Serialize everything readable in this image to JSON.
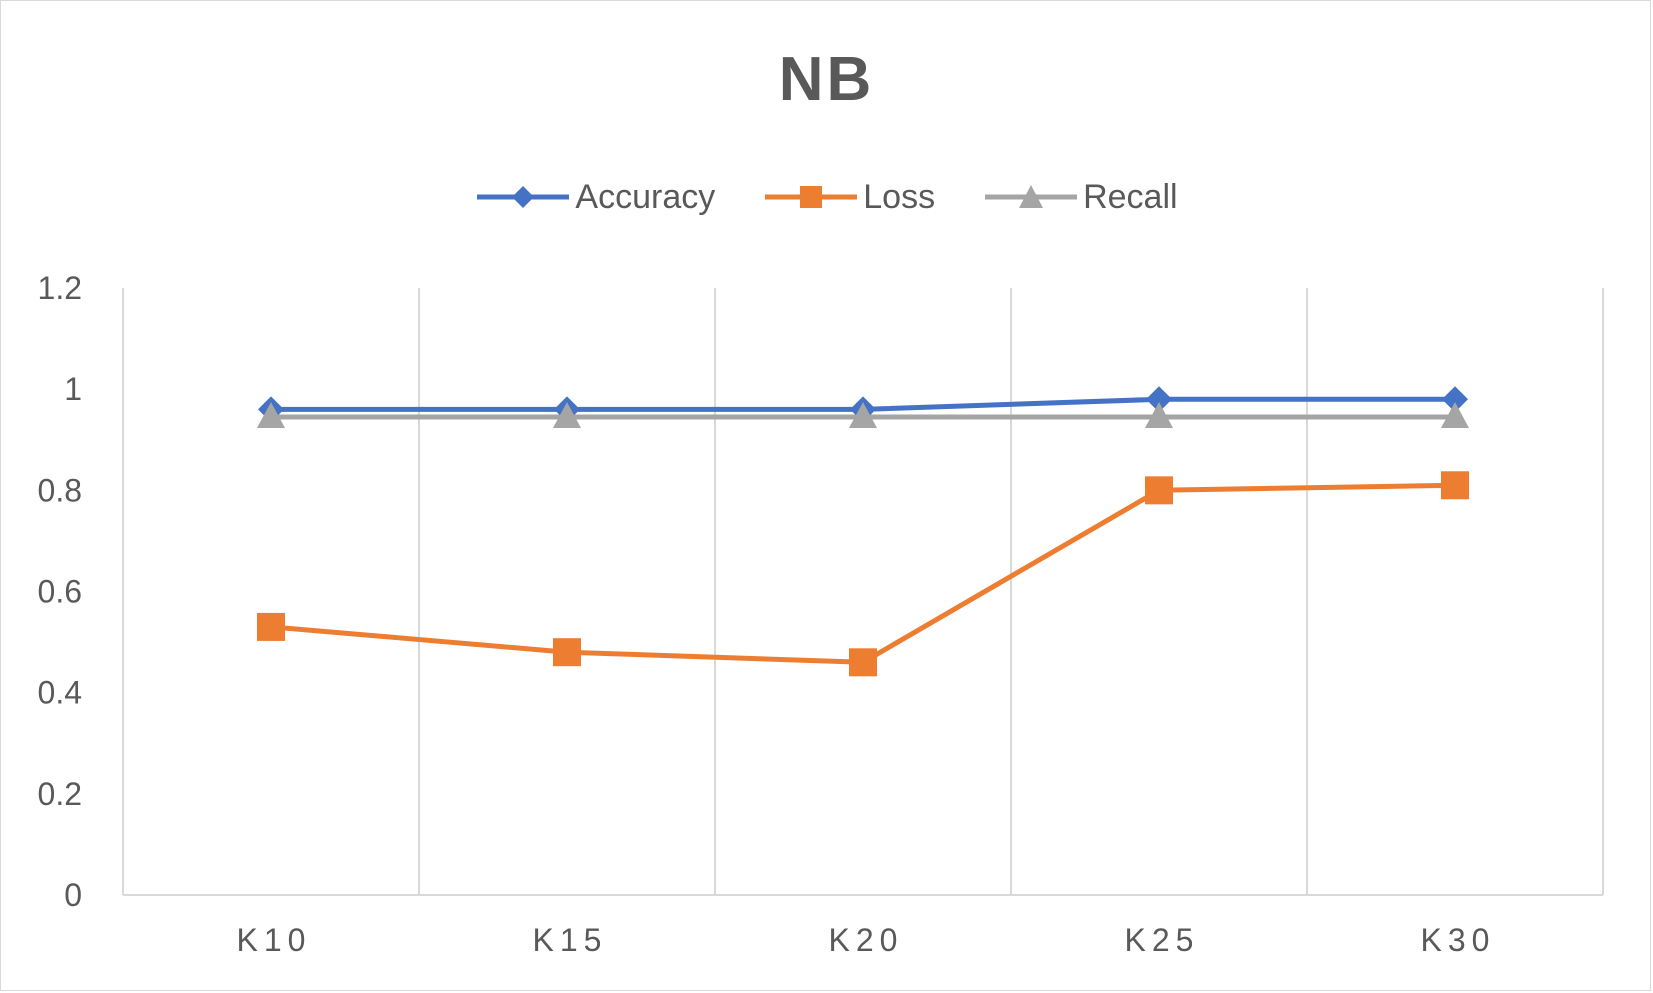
{
  "chart_data": {
    "type": "line",
    "title": "NB",
    "categories": [
      "K10",
      "K15",
      "K20",
      "K25",
      "K30"
    ],
    "series": [
      {
        "name": "Accuracy",
        "values": [
          0.96,
          0.96,
          0.96,
          0.98,
          0.98
        ],
        "color": "#4472c4",
        "marker": "diamond"
      },
      {
        "name": "Loss",
        "values": [
          0.53,
          0.48,
          0.46,
          0.8,
          0.81
        ],
        "color": "#ed7d31",
        "marker": "square"
      },
      {
        "name": "Recall",
        "values": [
          0.945,
          0.945,
          0.945,
          0.945,
          0.945
        ],
        "color": "#a5a5a5",
        "marker": "triangle"
      }
    ],
    "yticks": [
      "0",
      "0.2",
      "0.4",
      "0.6",
      "0.8",
      "1",
      "1.2"
    ],
    "ylim": [
      0,
      1.2
    ],
    "grid": "vertical",
    "legend_position": "top",
    "xlabel": "",
    "ylabel": ""
  }
}
